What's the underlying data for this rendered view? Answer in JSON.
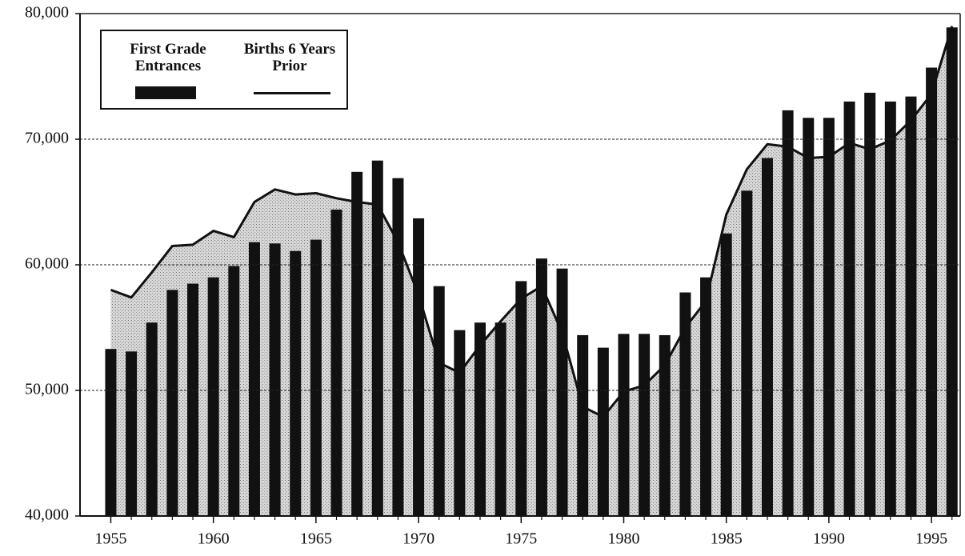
{
  "chart_data": {
    "type": "bar+line",
    "x": [
      1955,
      1956,
      1957,
      1958,
      1959,
      1960,
      1961,
      1962,
      1963,
      1964,
      1965,
      1966,
      1967,
      1968,
      1969,
      1970,
      1971,
      1972,
      1973,
      1974,
      1975,
      1976,
      1977,
      1978,
      1979,
      1980,
      1981,
      1982,
      1983,
      1984,
      1985,
      1986,
      1987,
      1988,
      1989,
      1990,
      1991,
      1992,
      1993,
      1994,
      1995,
      1996
    ],
    "series": [
      {
        "name": "First Grade Entrances",
        "color": "#111111",
        "kind": "bar",
        "values": [
          53300,
          53100,
          55400,
          58000,
          58500,
          59000,
          59900,
          61800,
          61700,
          61100,
          62000,
          64400,
          67400,
          68300,
          66900,
          63700,
          58300,
          54800,
          55400,
          55400,
          58700,
          60500,
          59700,
          54400,
          53400,
          54500,
          54500,
          54400,
          57800,
          59000,
          62500,
          65900,
          68500,
          72300,
          71700,
          71700,
          73000,
          73700,
          73000,
          73400,
          75700,
          78900
        ]
      },
      {
        "name": "Births 6 Years Prior",
        "color": "#111111",
        "kind": "line",
        "fill": "#c8c8c8",
        "values": [
          58000,
          57400,
          59400,
          61500,
          61600,
          62700,
          62200,
          65000,
          66000,
          65600,
          65700,
          65300,
          65000,
          64800,
          61800,
          57600,
          52200,
          51400,
          53600,
          55500,
          57300,
          58300,
          54600,
          48700,
          47900,
          49900,
          50400,
          52000,
          55000,
          57100,
          64000,
          67600,
          69600,
          69400,
          68500,
          68600,
          69700,
          69200,
          69900,
          71500,
          73600,
          79000
        ]
      }
    ],
    "xlim": [
      1953.5,
      1996.4
    ],
    "xticks": [
      1955,
      1960,
      1965,
      1970,
      1975,
      1980,
      1985,
      1990,
      1995
    ],
    "ylim": [
      40000,
      80000
    ],
    "yticks": [
      {
        "value": 40000,
        "label": "40,000"
      },
      {
        "value": 50000,
        "label": "50,000"
      },
      {
        "value": 60000,
        "label": "60,000"
      },
      {
        "value": 70000,
        "label": "70,000"
      },
      {
        "value": 80000,
        "label": "80,000"
      }
    ],
    "grid": true,
    "legend": "upper left"
  }
}
